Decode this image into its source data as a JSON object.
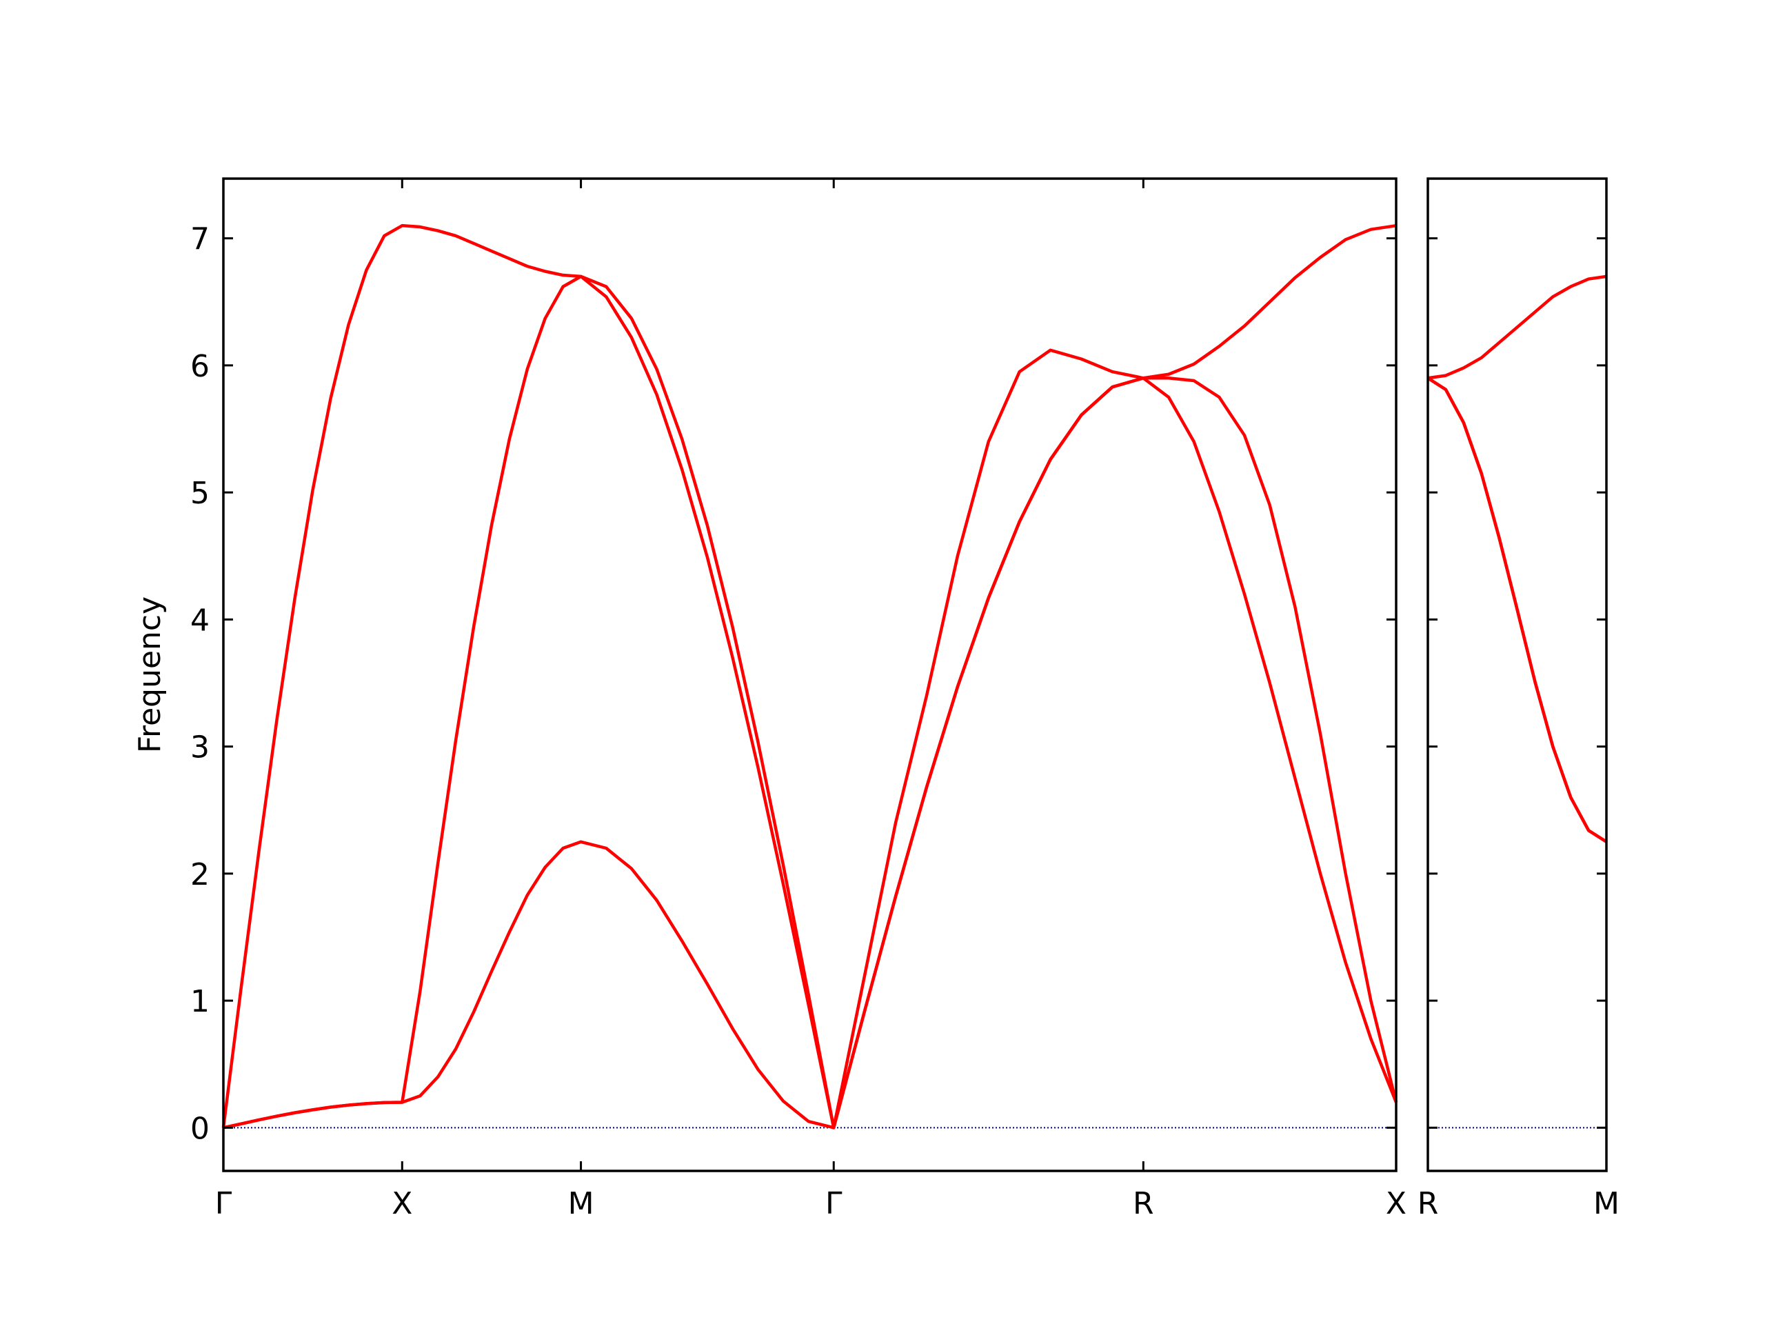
{
  "chart_data": [
    {
      "type": "line",
      "ylabel": "Frequency",
      "x": [
        0,
        0.05,
        0.1,
        0.15,
        0.2,
        0.25,
        0.3,
        0.35,
        0.4,
        0.45,
        0.5,
        0.55,
        0.6,
        0.65,
        0.7,
        0.75,
        0.8,
        0.85,
        0.9,
        0.95,
        1.0,
        1.0707,
        1.1414,
        1.2121,
        1.2828,
        1.3536,
        1.4243,
        1.495,
        1.5657,
        1.6364,
        1.7071,
        1.7937,
        1.8803,
        1.9669,
        2.0535,
        2.1401,
        2.2267,
        2.3133,
        2.3999,
        2.4865,
        2.5731,
        2.6438,
        2.7145,
        2.7852,
        2.8559,
        2.9267,
        2.9974,
        3.0681,
        3.1388,
        3.2095,
        3.2802
      ],
      "series": [
        {
          "color": "#ff0000",
          "values": [
            0,
            0.031,
            0.062,
            0.091,
            0.118,
            0.141,
            0.162,
            0.178,
            0.19,
            0.198,
            0.2,
            0.25,
            0.4,
            0.62,
            0.91,
            1.23,
            1.54,
            1.83,
            2.05,
            2.2,
            2.25,
            2.2,
            2.04,
            1.79,
            1.47,
            1.13,
            0.78,
            0.46,
            0.21,
            0.05,
            0,
            0.92,
            1.82,
            2.68,
            3.47,
            4.17,
            4.77,
            5.26,
            5.61,
            5.83,
            5.9,
            5.75,
            5.4,
            4.85,
            4.2,
            3.5,
            2.75,
            2.0,
            1.3,
            0.7,
            0.2
          ]
        },
        {
          "color": "#ff0000",
          "values": [
            0,
            0.031,
            0.062,
            0.091,
            0.118,
            0.141,
            0.162,
            0.178,
            0.19,
            0.198,
            0.2,
            1.07,
            2.08,
            3.05,
            3.94,
            4.74,
            5.42,
            5.97,
            6.37,
            6.62,
            6.7,
            6.54,
            6.22,
            5.77,
            5.18,
            4.49,
            3.7,
            2.84,
            1.92,
            0.97,
            0,
            0.92,
            1.82,
            2.68,
            3.47,
            4.17,
            4.77,
            5.26,
            5.61,
            5.83,
            5.9,
            5.9,
            5.88,
            5.75,
            5.45,
            4.9,
            4.1,
            3.1,
            2.0,
            1.0,
            0.2
          ]
        },
        {
          "color": "#ff0000",
          "values": [
            0,
            1.11,
            2.19,
            3.22,
            4.17,
            5.02,
            5.74,
            6.32,
            6.75,
            7.02,
            7.1,
            7.09,
            7.06,
            7.02,
            6.96,
            6.9,
            6.84,
            6.78,
            6.74,
            6.71,
            6.7,
            6.62,
            6.37,
            5.97,
            5.42,
            4.74,
            3.94,
            3.04,
            2.07,
            1.05,
            0,
            1.2,
            2.4,
            3.4,
            4.5,
            5.4,
            5.95,
            6.12,
            6.05,
            5.95,
            5.9,
            5.93,
            6.01,
            6.15,
            6.31,
            6.5,
            6.69,
            6.85,
            6.99,
            7.07,
            7.1
          ]
        }
      ],
      "zero_line": {
        "y": 0,
        "color": "#00008b"
      },
      "xlim": [
        0,
        3.2802
      ],
      "xticks": [
        {
          "value": 0,
          "label": "Γ"
        },
        {
          "value": 0.5,
          "label": "X"
        },
        {
          "value": 1.0,
          "label": "M"
        },
        {
          "value": 1.7071,
          "label": "Γ"
        },
        {
          "value": 2.5731,
          "label": "R"
        },
        {
          "value": 3.2802,
          "label": "X"
        }
      ],
      "ylim": [
        -0.34,
        7.47
      ],
      "yticks": [
        0,
        1,
        2,
        3,
        4,
        5,
        6,
        7
      ],
      "ytick_labels": true
    },
    {
      "type": "line",
      "x": [
        0,
        0.07071,
        0.14142,
        0.21213,
        0.28284,
        0.35355,
        0.42426,
        0.49497,
        0.56568,
        0.63639,
        0.7071
      ],
      "series": [
        {
          "color": "#ff0000",
          "values": [
            5.9,
            5.81,
            5.55,
            5.15,
            4.64,
            4.08,
            3.51,
            3.0,
            2.6,
            2.34,
            2.25
          ]
        },
        {
          "color": "#ff0000",
          "values": [
            5.9,
            5.81,
            5.55,
            5.15,
            4.64,
            4.08,
            3.51,
            3.0,
            2.6,
            2.34,
            2.25
          ]
        },
        {
          "color": "#ff0000",
          "values": [
            5.9,
            5.92,
            5.98,
            6.06,
            6.18,
            6.3,
            6.42,
            6.54,
            6.62,
            6.68,
            6.7
          ]
        }
      ],
      "zero_line": {
        "y": 0,
        "color": "#00008b"
      },
      "xlim": [
        0,
        0.7071
      ],
      "xticks": [
        {
          "value": 0,
          "label": "R"
        },
        {
          "value": 0.7071,
          "label": "M"
        }
      ],
      "ylim": [
        -0.34,
        7.47
      ],
      "yticks": [
        0,
        1,
        2,
        3,
        4,
        5,
        6,
        7
      ],
      "ytick_labels": false
    }
  ]
}
